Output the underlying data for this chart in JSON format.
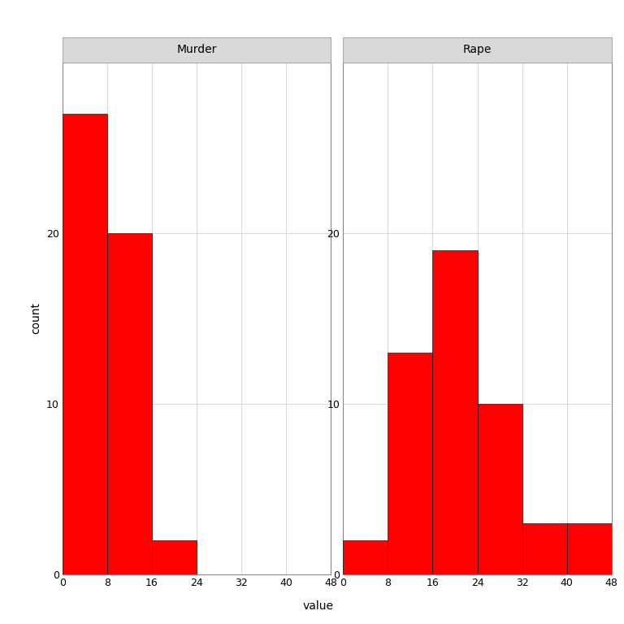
{
  "murder_bins": [
    0,
    8,
    16,
    24,
    32,
    40,
    48
  ],
  "murder_counts": [
    27,
    20,
    2,
    0,
    0,
    0
  ],
  "rape_bins": [
    0,
    8,
    16,
    24,
    32,
    40,
    48
  ],
  "rape_counts": [
    2,
    13,
    19,
    10,
    3,
    3
  ],
  "bar_color": "#FF0000",
  "bar_edgecolor": "#1a1a1a",
  "background_color": "#FFFFFF",
  "panel_bg_color": "#FFFFFF",
  "grid_color": "#D9D9D9",
  "strip_bg_color": "#D9D9D9",
  "strip_edge_color": "#C0C0C0",
  "xlabel": "value",
  "ylabel": "count",
  "ylim": [
    0,
    30
  ],
  "yticks": [
    0,
    10,
    20
  ],
  "xticks": [
    0,
    8,
    16,
    24,
    32,
    40,
    48
  ],
  "title_murder": "Murder",
  "title_rape": "Rape",
  "title_fontsize": 10,
  "axis_label_fontsize": 10,
  "tick_fontsize": 9
}
